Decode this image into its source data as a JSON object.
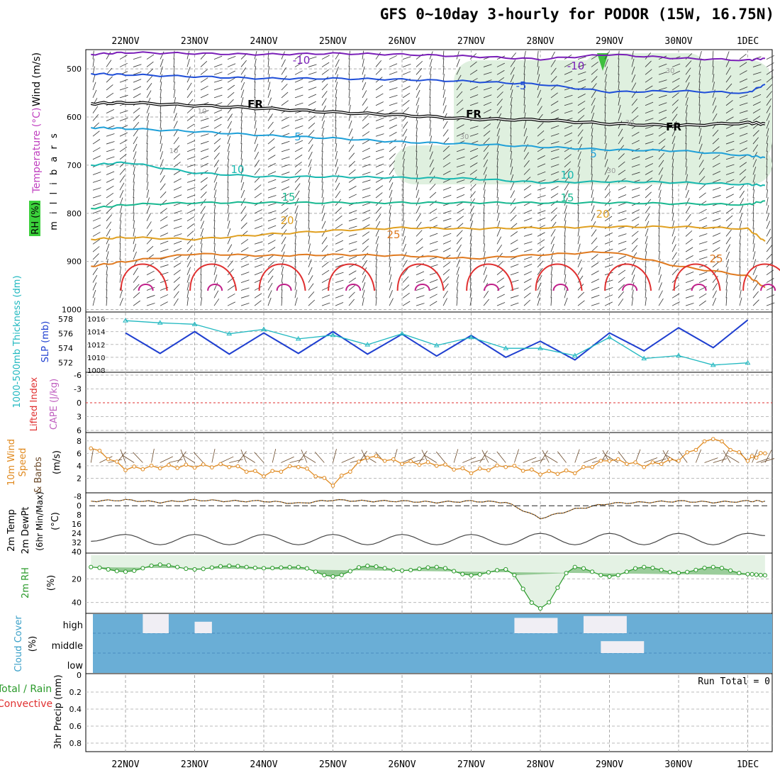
{
  "title": "GFS 0~10day 3-hourly for PODOR (15W, 16.75N)",
  "dates": [
    "22NOV",
    "23NOV",
    "24NOV",
    "25NOV",
    "26NOV",
    "27NOV",
    "28NOV",
    "29NOV",
    "30NOV",
    "1DEC"
  ],
  "colors": {
    "temperature_contour": [
      "#7a1fb8",
      "#1f4ed8",
      "#000000",
      "#1fa0d8",
      "#18b8b0",
      "#18b890",
      "#e0a020",
      "#e07a20",
      "#e03030"
    ],
    "rh_shade": "#dff0df",
    "slp": "#1f3fd0",
    "thickness": "#20b8c0",
    "wind_speed": "#e08a20",
    "barb": "#6b4a2a",
    "cloud_bg": "#6aaed6",
    "cloud_fill": "#f0eef4",
    "rh2m": "#2a9a2a",
    "zero_line": "#e03030"
  },
  "panels": {
    "upper_air": {
      "ylabel": "m i l l i b a r s",
      "side_labels": [
        "Wind (m/s)",
        "Temperature (°C)",
        "RH (%)"
      ],
      "levels": [
        500,
        600,
        700,
        800,
        900,
        1000
      ],
      "contour_labels": [
        "-10",
        "-10",
        "-5",
        "FR",
        "FR",
        "FR",
        "5",
        "5",
        "10",
        "10",
        "15",
        "15",
        "20",
        "20",
        "25",
        "25"
      ],
      "rh_labels": [
        "30",
        "30",
        "30",
        "30",
        "10",
        "10"
      ]
    },
    "slp": {
      "left_label": "1000-500mb Thickness (dm)",
      "right_label": "SLP (mb)",
      "thickness_ticks": [
        572,
        574,
        576,
        578
      ],
      "slp_ticks": [
        1008,
        1010,
        1012,
        1014,
        1016
      ]
    },
    "li": {
      "left_label": "Lifted Index",
      "right_label": "CAPE (J/kg)",
      "ticks": [
        "-6",
        "-3",
        "0",
        "3",
        "6"
      ]
    },
    "wind10m": {
      "labels": [
        "10m Wind",
        "Speed",
        "& Barbs"
      ],
      "unit": "(m/s)",
      "ticks": [
        2,
        4,
        6,
        8
      ]
    },
    "temp2m": {
      "labels": [
        "2m Temp",
        "2m DewPt",
        "(6hr Min/Max)"
      ],
      "unit": "(°C)",
      "ticks": [
        -8,
        0,
        8,
        16,
        24,
        32,
        40
      ]
    },
    "rh2m": {
      "label": "2m RH",
      "unit": "(%)",
      "ticks": [
        20,
        40
      ]
    },
    "cloud": {
      "label": "Cloud Cover",
      "unit": "(%)",
      "levels": [
        "high",
        "middle",
        "low"
      ]
    },
    "precip": {
      "labels": [
        "Total / Rain",
        "Convective"
      ],
      "ylabel": "3hr Precip (mm)",
      "ticks": [
        "0",
        "0.2",
        "0.4",
        "0.6",
        "0.8"
      ],
      "run_total": "Run Total = 0"
    }
  },
  "chart_data": [
    {
      "type": "line",
      "name": "upper-air temperature contours",
      "x": [
        "21NOV12",
        "22NOV00",
        "23NOV00",
        "24NOV00",
        "25NOV00",
        "26NOV00",
        "27NOV00",
        "28NOV00",
        "29NOV00",
        "30NOV00",
        "1DEC00",
        "1DEC06"
      ],
      "series": [
        {
          "name": "-10",
          "values": [
            470,
            466,
            468,
            470,
            468,
            470,
            474,
            480,
            470,
            478,
            482,
            478
          ]
        },
        {
          "name": "-5",
          "values": [
            510,
            512,
            516,
            520,
            520,
            522,
            526,
            532,
            548,
            546,
            550,
            532
          ]
        },
        {
          "name": "FR",
          "values": [
            572,
            570,
            576,
            582,
            590,
            596,
            604,
            606,
            614,
            618,
            612,
            614
          ]
        },
        {
          "name": "5",
          "values": [
            622,
            624,
            630,
            638,
            644,
            652,
            656,
            662,
            668,
            670,
            680,
            684
          ]
        },
        {
          "name": "10",
          "values": [
            700,
            694,
            716,
            724,
            724,
            726,
            728,
            736,
            734,
            736,
            740,
            742
          ]
        },
        {
          "name": "15",
          "values": [
            790,
            782,
            778,
            778,
            778,
            778,
            778,
            778,
            778,
            780,
            782,
            774
          ]
        },
        {
          "name": "20",
          "values": [
            854,
            850,
            854,
            844,
            836,
            830,
            832,
            830,
            828,
            828,
            832,
            858
          ]
        },
        {
          "name": "25",
          "values": [
            910,
            900,
            884,
            888,
            886,
            888,
            894,
            886,
            880,
            910,
            930,
            954
          ]
        }
      ],
      "ylim": [
        460,
        1005
      ]
    },
    {
      "type": "line",
      "name": "SLP and thickness",
      "x": [
        "22NOV00",
        "22NOV12",
        "23NOV00",
        "23NOV12",
        "24NOV00",
        "24NOV12",
        "25NOV00",
        "25NOV12",
        "26NOV00",
        "26NOV12",
        "27NOV00",
        "27NOV12",
        "28NOV00",
        "28NOV12",
        "29NOV00",
        "29NOV12",
        "30NOV00",
        "30NOV12",
        "1DEC00"
      ],
      "series": [
        {
          "name": "SLP (mb)",
          "values": [
            1013.8,
            1010.6,
            1014.0,
            1010.5,
            1013.8,
            1010.6,
            1014.0,
            1010.5,
            1013.6,
            1010.2,
            1013.4,
            1010.0,
            1012.5,
            1009.6,
            1013.8,
            1011.0,
            1014.6,
            1011.5,
            1015.8
          ]
        },
        {
          "name": "1000-500mb Thickness (dm)",
          "values": [
            577.8,
            577.5,
            577.3,
            576.0,
            576.6,
            575.3,
            575.8,
            574.5,
            576.0,
            574.4,
            575.5,
            574.0,
            574.0,
            573.0,
            575.5,
            572.6,
            573.0,
            571.7,
            572.0
          ]
        }
      ],
      "ylim_slp": [
        1008,
        1016.5
      ],
      "ylim_thickness": [
        571,
        578.5
      ]
    },
    {
      "type": "line",
      "name": "10m wind speed",
      "ylabel": "(m/s)",
      "x": [
        "21NOV12",
        "22NOV00",
        "22NOV12",
        "23NOV00",
        "23NOV12",
        "24NOV00",
        "24NOV12",
        "25NOV00",
        "25NOV12",
        "26NOV00",
        "26NOV12",
        "27NOV00",
        "27NOV12",
        "28NOV00",
        "28NOV12",
        "29NOV00",
        "29NOV12",
        "30NOV00",
        "30NOV12",
        "1DEC00",
        "1DEC06"
      ],
      "values": [
        7.0,
        3.5,
        3.8,
        3.9,
        4.0,
        2.5,
        4.0,
        1.0,
        5.5,
        4.5,
        4.2,
        3.0,
        4.0,
        2.8,
        3.0,
        5.0,
        4.0,
        5.0,
        8.5,
        5.0,
        6.0
      ],
      "ylim": [
        0,
        9
      ]
    },
    {
      "type": "line",
      "name": "2m temperature and dew point",
      "ylabel": "(°C)",
      "x": [
        "21NOV12",
        "22NOV00",
        "22NOV12",
        "23NOV00",
        "23NOV12",
        "24NOV00",
        "24NOV12",
        "25NOV00",
        "25NOV12",
        "26NOV00",
        "26NOV12",
        "27NOV00",
        "27NOV12",
        "28NOV00",
        "28NOV12",
        "29NOV00",
        "29NOV12",
        "30NOV00",
        "30NOV12",
        "1DEC00",
        "1DEC06"
      ],
      "series": [
        {
          "name": "2m Temp",
          "values": [
            31,
            25,
            34,
            25,
            34,
            25,
            34,
            25,
            34,
            25,
            34,
            25,
            34,
            24,
            34,
            24,
            34,
            24,
            34,
            24,
            26
          ]
        },
        {
          "name": "2m DewPt",
          "values": [
            -4,
            -5,
            -3,
            -5,
            -4,
            -4,
            -2,
            -5,
            -4,
            -4,
            -3,
            -4,
            -3,
            11,
            3,
            -2,
            -3,
            -4,
            -3,
            -4,
            -4
          ]
        }
      ],
      "ylim": [
        -10,
        40
      ]
    },
    {
      "type": "area",
      "name": "2m relative humidity",
      "ylabel": "(%)",
      "x": [
        "21NOV12",
        "22NOV00",
        "22NOV12",
        "23NOV00",
        "23NOV12",
        "24NOV00",
        "24NOV12",
        "25NOV00",
        "25NOV12",
        "26NOV00",
        "26NOV12",
        "27NOV00",
        "27NOV12",
        "28NOV00",
        "28NOV12",
        "29NOV00",
        "29NOV12",
        "30NOV00",
        "30NOV12",
        "1DEC00",
        "1DEC06"
      ],
      "values": [
        10,
        14,
        8,
        12,
        9,
        11,
        10,
        18,
        9,
        13,
        10,
        17,
        12,
        45,
        10,
        18,
        10,
        15,
        10,
        16,
        17
      ],
      "ylim": [
        0,
        48
      ]
    },
    {
      "type": "bar",
      "name": "cloud cover",
      "categories": [
        "high",
        "middle"
      ],
      "segments": [
        {
          "level": "high",
          "start": "22NOV06",
          "end": "22NOV15",
          "percent": 100
        },
        {
          "level": "high",
          "start": "23NOV00",
          "end": "23NOV06",
          "percent": 60
        },
        {
          "level": "high",
          "start": "27NOV15",
          "end": "28NOV06",
          "percent": 80
        },
        {
          "level": "high",
          "start": "28NOV15",
          "end": "29NOV06",
          "percent": 90
        },
        {
          "level": "middle",
          "start": "28NOV21",
          "end": "29NOV12",
          "percent": 60
        }
      ]
    },
    {
      "type": "bar",
      "name": "3hr precipitation",
      "ylabel": "3hr Precip (mm)",
      "values": [],
      "ylim": [
        0,
        0.9
      ]
    }
  ]
}
